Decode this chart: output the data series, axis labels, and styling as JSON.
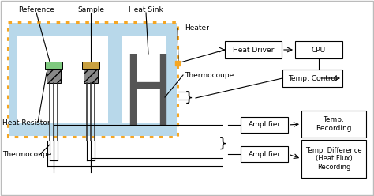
{
  "bg_color": "#ffffff",
  "blue_fill": "#b8d8ea",
  "orange_border": "#f5a623",
  "labels": {
    "reference": "Reference",
    "sample": "Sample",
    "heat_sink": "Heat Sink",
    "heater": "Heater",
    "thermocoupe_mid": "Thermocoupe",
    "heat_resistor": "Heat Resistor",
    "thermocoupe_bot": "Thermocoupe",
    "heat_driver": "Heat Driver",
    "cpu": "CPU",
    "temp_control": "Temp. Control",
    "amplifier1": "Amplifier",
    "amplifier2": "Amplifier",
    "temp_recording": "Temp.\nRecording",
    "temp_diff_recording": "Temp. Difference\n(Heat Flux)\nRecording"
  },
  "fig_w": 4.74,
  "fig_h": 2.48,
  "dpi": 100
}
